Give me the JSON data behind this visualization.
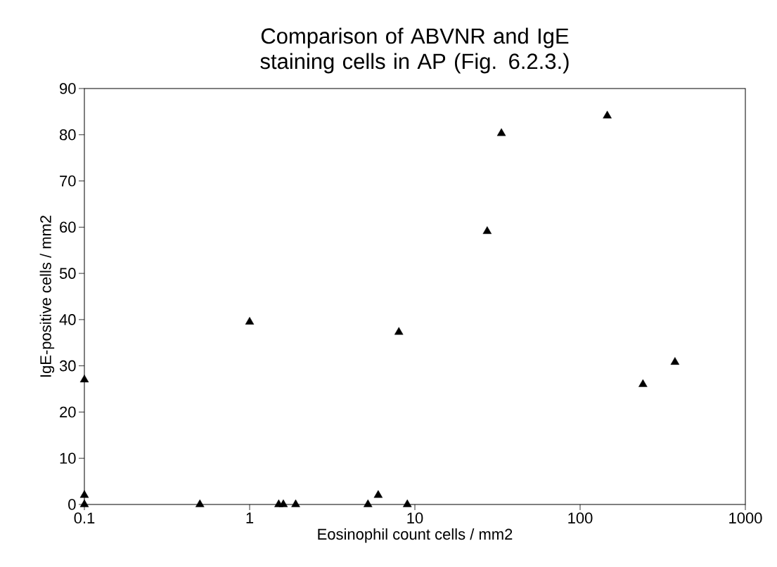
{
  "chart_data": {
    "type": "scatter",
    "title": "Comparison of ABVNR and IgE staining cells in AP (Fig. 6.2.3.)",
    "xlabel": "Eosinophil count cells / mm2",
    "ylabel": "IgE-positive cells / mm2",
    "x": [
      0.1,
      0.1,
      0.1,
      0.5,
      1.0,
      1.5,
      1.6,
      1.9,
      5.2,
      6,
      8,
      9,
      27.4,
      33.4,
      146,
      240,
      375
    ],
    "values": [
      27,
      2,
      0,
      0,
      39.5,
      0,
      0,
      0,
      0,
      2,
      37.3,
      0,
      59.1,
      80.3,
      84.1,
      26,
      30.8
    ],
    "color": "#000000",
    "marker": "triangle",
    "log": "x",
    "xlim": [
      0.1,
      1000
    ],
    "ylim": [
      0,
      90
    ],
    "xticks": [
      0.1,
      1,
      10,
      100,
      1000
    ],
    "yticks": [
      0,
      10,
      20,
      30,
      40,
      50,
      60,
      70,
      80,
      90
    ]
  }
}
